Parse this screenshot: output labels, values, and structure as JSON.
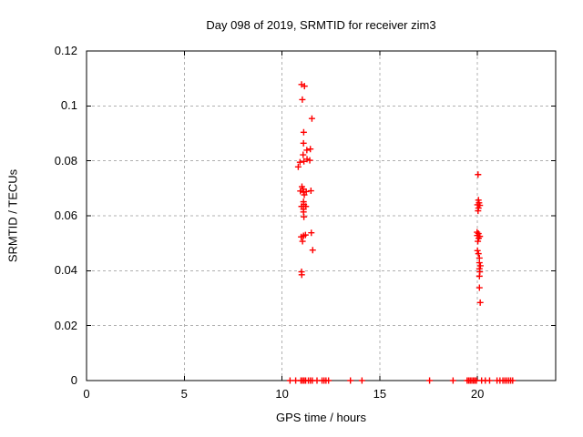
{
  "window": {
    "title": "Day 098 of 2019, SRMTID for receiver zim3"
  },
  "chart_data": {
    "type": "scatter",
    "title": "Day 098 of 2019, SRMTID for receiver zim3",
    "xlabel": "GPS time / hours",
    "ylabel": "SRMTID / TECUs",
    "xlim": [
      0,
      24
    ],
    "ylim": [
      0,
      0.12
    ],
    "xticks": [
      0,
      5,
      10,
      15,
      20
    ],
    "yticks": [
      0,
      0.02,
      0.04,
      0.06,
      0.08,
      0.1,
      0.12
    ],
    "grid": true,
    "legend_position": "none",
    "marker": "plus",
    "marker_color": "#ff0000",
    "grid_color": "#b0b0b0",
    "axis_color": "#000000",
    "series": [
      {
        "name": "SRMTID",
        "points": [
          [
            11.0,
            0.1078
          ],
          [
            11.15,
            0.1072
          ],
          [
            11.04,
            0.1023
          ],
          [
            11.53,
            0.0954
          ],
          [
            11.11,
            0.0904
          ],
          [
            11.1,
            0.0864
          ],
          [
            11.27,
            0.0839
          ],
          [
            11.45,
            0.0843
          ],
          [
            11.08,
            0.0822
          ],
          [
            10.83,
            0.0778
          ],
          [
            10.92,
            0.0795
          ],
          [
            11.12,
            0.0798
          ],
          [
            11.28,
            0.0806
          ],
          [
            11.42,
            0.0802
          ],
          [
            10.94,
            0.069
          ],
          [
            11.02,
            0.0706
          ],
          [
            11.08,
            0.0697
          ],
          [
            11.1,
            0.0686
          ],
          [
            11.14,
            0.0676
          ],
          [
            11.24,
            0.0688
          ],
          [
            11.48,
            0.0691
          ],
          [
            11.1,
            0.0651
          ],
          [
            11.12,
            0.0641
          ],
          [
            11.0,
            0.0634
          ],
          [
            11.22,
            0.0634
          ],
          [
            11.1,
            0.0624
          ],
          [
            11.1,
            0.0614
          ],
          [
            11.12,
            0.0596
          ],
          [
            10.98,
            0.0523
          ],
          [
            11.1,
            0.0527
          ],
          [
            11.2,
            0.053
          ],
          [
            11.05,
            0.0507
          ],
          [
            11.5,
            0.0538
          ],
          [
            11.57,
            0.0475
          ],
          [
            11.0,
            0.0396
          ],
          [
            11.01,
            0.0385
          ],
          [
            20.03,
            0.075
          ],
          [
            20.05,
            0.0657
          ],
          [
            20.08,
            0.0647
          ],
          [
            20.0,
            0.064
          ],
          [
            20.12,
            0.0638
          ],
          [
            20.05,
            0.0628
          ],
          [
            20.03,
            0.0618
          ],
          [
            19.98,
            0.054
          ],
          [
            20.05,
            0.0535
          ],
          [
            19.99,
            0.0528
          ],
          [
            20.12,
            0.0525
          ],
          [
            20.06,
            0.0518
          ],
          [
            20.02,
            0.0507
          ],
          [
            20.0,
            0.0473
          ],
          [
            20.05,
            0.0462
          ],
          [
            20.1,
            0.0446
          ],
          [
            20.1,
            0.0429
          ],
          [
            20.15,
            0.0418
          ],
          [
            20.1,
            0.0407
          ],
          [
            20.12,
            0.0396
          ],
          [
            20.1,
            0.038
          ],
          [
            20.1,
            0.0338
          ],
          [
            20.14,
            0.0284
          ],
          [
            10.41,
            0
          ],
          [
            10.7,
            0
          ],
          [
            10.97,
            0
          ],
          [
            11.05,
            0
          ],
          [
            11.13,
            0
          ],
          [
            11.21,
            0
          ],
          [
            11.35,
            0
          ],
          [
            11.45,
            0
          ],
          [
            11.55,
            0
          ],
          [
            11.79,
            0
          ],
          [
            12.05,
            0
          ],
          [
            12.15,
            0
          ],
          [
            12.25,
            0
          ],
          [
            12.38,
            0
          ],
          [
            13.5,
            0
          ],
          [
            14.09,
            0
          ],
          [
            17.55,
            0
          ],
          [
            18.75,
            0
          ],
          [
            19.47,
            0
          ],
          [
            19.55,
            0
          ],
          [
            19.63,
            0
          ],
          [
            19.71,
            0
          ],
          [
            19.79,
            0
          ],
          [
            19.87,
            0
          ],
          [
            19.95,
            0
          ],
          [
            20.21,
            0
          ],
          [
            20.4,
            0
          ],
          [
            20.62,
            0
          ],
          [
            21.0,
            0
          ],
          [
            21.15,
            0
          ],
          [
            21.3,
            0
          ],
          [
            21.4,
            0
          ],
          [
            21.5,
            0
          ],
          [
            21.6,
            0
          ],
          [
            21.7,
            0
          ],
          [
            21.8,
            0
          ]
        ]
      }
    ]
  }
}
